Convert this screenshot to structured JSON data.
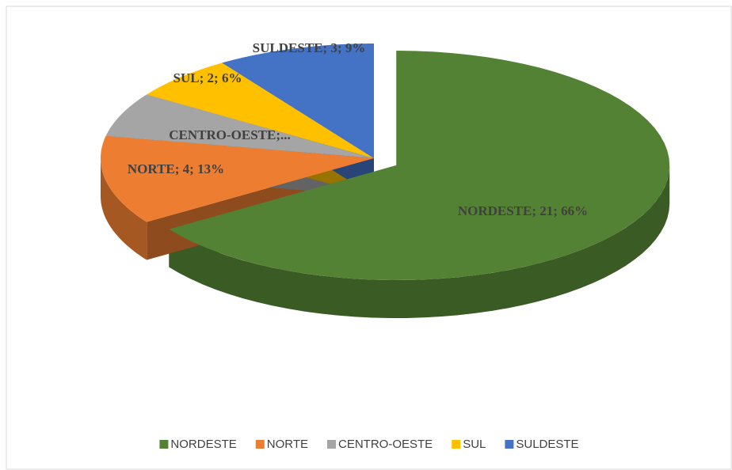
{
  "chart_data": {
    "type": "pie3d",
    "categories": [
      "NORDESTE",
      "NORTE",
      "CENTRO-OESTE",
      "SUL",
      "SULDESTE"
    ],
    "values": [
      21,
      4,
      2,
      2,
      3
    ],
    "value_labels": [
      "NORDESTE; 21; 66%",
      "NORTE; 4; 13%",
      "CENTRO-OESTE;...",
      "SUL; 2; 6%",
      "SULDESTE; 3; 9%"
    ],
    "colors": [
      "#548235",
      "#ed7d31",
      "#a5a5a5",
      "#ffc000",
      "#4472c4"
    ],
    "legend": "bottom"
  }
}
